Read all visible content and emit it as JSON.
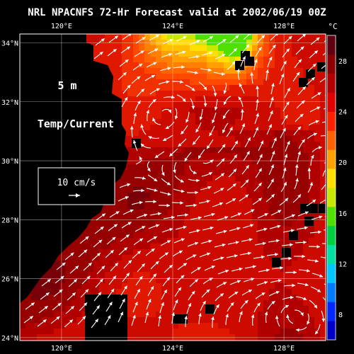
{
  "title": "NRL NPACNFS 72-Hr Forecast valid at 2002/06/19 00Z",
  "depth_label": "5 m",
  "field_label": "Temp/Current",
  "scale_vector_label": "10 cm/s",
  "colorbar": {
    "unit": "°C",
    "ticks": [
      "28",
      "24",
      "20",
      "16",
      "12",
      "8"
    ],
    "tick_values": [
      28,
      24,
      20,
      16,
      12,
      8
    ],
    "range": [
      6,
      30
    ],
    "colors": [
      "#0000c8",
      "#0028ff",
      "#0078ff",
      "#00c8ff",
      "#00e0a0",
      "#00d040",
      "#50e000",
      "#c8e800",
      "#ffe000",
      "#ffa000",
      "#ff6000",
      "#ff2000",
      "#e00000",
      "#b40000",
      "#8c0000",
      "#600010"
    ]
  },
  "axes": {
    "lon_ticks": [
      "120°E",
      "124°E",
      "128°E"
    ],
    "lon_values": [
      120,
      124,
      128
    ],
    "lat_ticks": [
      "34°N",
      "32°N",
      "30°N",
      "28°N",
      "26°N",
      "24°N"
    ],
    "lat_values": [
      34,
      32,
      30,
      28,
      26,
      24
    ],
    "lon_range": [
      118.5,
      129.5
    ],
    "lat_range": [
      23.9,
      34.3
    ]
  },
  "colors": {
    "land": "#000000",
    "text": "#ffffff",
    "streamline": "#ffffff"
  }
}
